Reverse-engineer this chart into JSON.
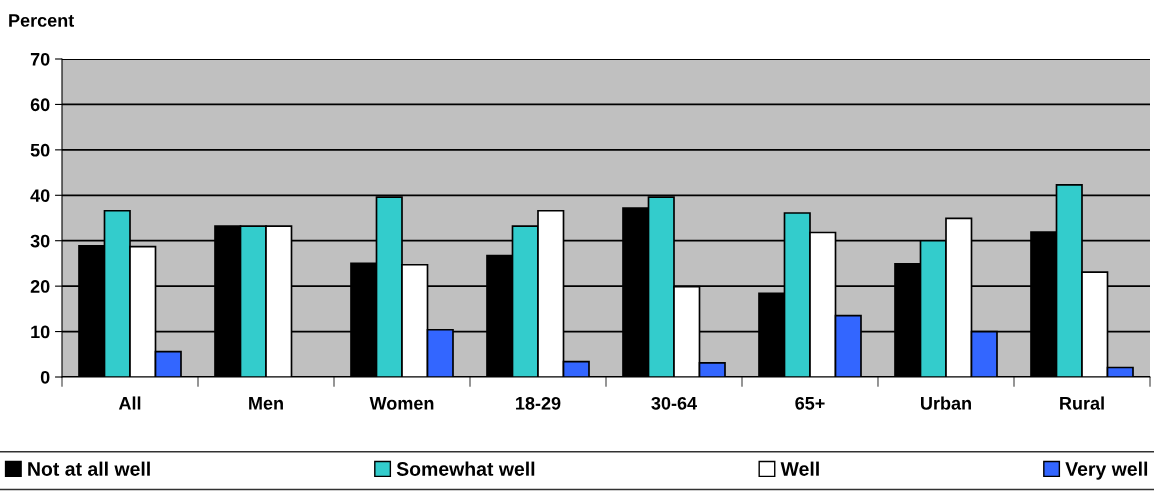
{
  "chart_data": {
    "type": "bar",
    "ylabel": "Percent",
    "categories": [
      "All",
      "Men",
      "Women",
      "18-29",
      "30-64",
      "65+",
      "Urban",
      "Rural"
    ],
    "series": [
      {
        "name": "Not at all well",
        "color": "#000000",
        "values": [
          28.9,
          33.2,
          25,
          26.7,
          37.2,
          18.4,
          24.9,
          31.9
        ]
      },
      {
        "name": "Somewhat well",
        "color": "#33cccc",
        "values": [
          36.6,
          33.2,
          39.6,
          33.2,
          39.6,
          36.1,
          30,
          42.3
        ]
      },
      {
        "name": "Well",
        "color": "#ffffff",
        "values": [
          28.7,
          33.2,
          24.7,
          36.6,
          19.9,
          31.8,
          34.9,
          23.1
        ]
      },
      {
        "name": "Very well",
        "color": "#3366ff",
        "values": [
          5.6,
          null,
          10.4,
          3.4,
          3.1,
          13.5,
          10,
          2.1
        ]
      }
    ],
    "ylim": [
      0,
      70
    ],
    "yticks": [
      0,
      10,
      20,
      30,
      40,
      50,
      60,
      70
    ],
    "grid": "y",
    "legend": "bottom"
  }
}
